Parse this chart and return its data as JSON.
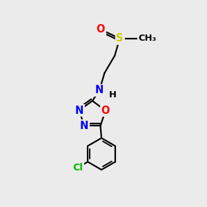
{
  "background_color": "#ebebeb",
  "bond_color": "#000000",
  "atom_colors": {
    "N": "#0000ff",
    "O": "#ff0000",
    "S": "#cccc00",
    "Cl": "#00bb00",
    "H": "#000000"
  },
  "bond_width": 1.6,
  "font_size": 10.5,
  "ring_r": 0.68,
  "benz_r": 0.78
}
